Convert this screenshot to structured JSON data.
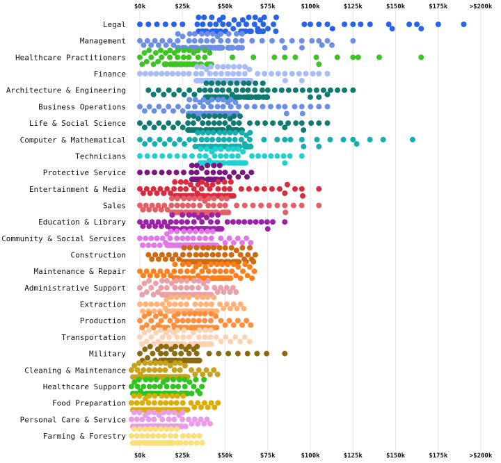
{
  "chart_data": {
    "type": "scatter",
    "subtype": "beeswarm",
    "title": "",
    "xlabel": "",
    "ylabel": "",
    "xlim": [
      0,
      200000
    ],
    "x_ticks": [
      0,
      25000,
      50000,
      75000,
      100000,
      125000,
      150000,
      175000,
      200000
    ],
    "x_tick_labels": [
      "$0k",
      "$25k",
      "$50k",
      "$75k",
      "$100k",
      "$125k",
      "$150k",
      "$175k",
      ">$200k"
    ],
    "x_tick_positions": [
      "top",
      "bottom"
    ],
    "grid": "vertical",
    "legend": "none",
    "categories": [
      {
        "name": "Legal",
        "color": "#2563eb",
        "min": 0,
        "q1": 30000,
        "median": 50000,
        "q3": 80000,
        "max": 190000,
        "count": 50,
        "outliers": [
          100000,
          105000,
          110000,
          120000,
          125000,
          135000,
          148000,
          158000,
          165000,
          175000,
          190000
        ]
      },
      {
        "name": "Management",
        "color": "#6b8fe6",
        "min": 0,
        "q1": 22000,
        "median": 40000,
        "q3": 60000,
        "max": 125000,
        "count": 85,
        "outliers": [
          85000,
          95000,
          105000,
          110000,
          125000
        ]
      },
      {
        "name": "Healthcare Practitioners",
        "color": "#3cc421",
        "min": 0,
        "q1": 12000,
        "median": 25000,
        "q3": 42000,
        "max": 165000,
        "count": 75,
        "outliers": [
          85000,
          105000,
          125000,
          165000
        ]
      },
      {
        "name": "Finance",
        "color": "#a8bdf5",
        "min": 0,
        "q1": 32000,
        "median": 50000,
        "q3": 65000,
        "max": 110000,
        "count": 80,
        "outliers": [
          85000,
          95000,
          105000,
          110000
        ]
      },
      {
        "name": "Architecture & Engineering",
        "color": "#0e7a72",
        "min": 5000,
        "q1": 38000,
        "median": 58000,
        "q3": 75000,
        "max": 125000,
        "count": 95,
        "outliers": [
          100000,
          105000,
          110000,
          120000,
          125000
        ]
      },
      {
        "name": "Business Operations",
        "color": "#6b8fe6",
        "min": 0,
        "q1": 28000,
        "median": 45000,
        "q3": 58000,
        "max": 110000,
        "count": 85,
        "outliers": [
          85000,
          95000,
          105000,
          110000
        ]
      },
      {
        "name": "Life & Social Science",
        "color": "#0e7a72",
        "min": 0,
        "q1": 28000,
        "median": 45000,
        "q3": 60000,
        "max": 110000,
        "count": 85,
        "outliers": [
          85000,
          95000,
          105000,
          110000
        ]
      },
      {
        "name": "Computer & Mathematical",
        "color": "#14b0b0",
        "min": 0,
        "q1": 32000,
        "median": 50000,
        "q3": 65000,
        "max": 160000,
        "count": 90,
        "outliers": [
          85000,
          95000,
          105000,
          125000,
          160000
        ]
      },
      {
        "name": "Technicians",
        "color": "#1fd2d2",
        "min": 0,
        "q1": 35000,
        "median": 48000,
        "q3": 62000,
        "max": 95000,
        "count": 70,
        "outliers": [
          85000,
          95000
        ]
      },
      {
        "name": "Protective Service",
        "color": "#7a1680",
        "min": 0,
        "q1": 30000,
        "median": 40000,
        "q3": 50000,
        "max": 70000,
        "count": 60,
        "outliers": []
      },
      {
        "name": "Entertainment & Media",
        "color": "#d62d3e",
        "min": 0,
        "q1": 20000,
        "median": 38000,
        "q3": 55000,
        "max": 105000,
        "count": 80,
        "outliers": [
          85000,
          95000,
          105000
        ]
      },
      {
        "name": "Sales",
        "color": "#e36068",
        "min": 0,
        "q1": 18000,
        "median": 35000,
        "q3": 52000,
        "max": 105000,
        "count": 80,
        "outliers": [
          85000,
          105000
        ]
      },
      {
        "name": "Education & Library",
        "color": "#9a22a5",
        "min": 0,
        "q1": 18000,
        "median": 35000,
        "q3": 48000,
        "max": 85000,
        "count": 85,
        "outliers": [
          75000,
          85000
        ]
      },
      {
        "name": "Community & Social Services",
        "color": "#e178e6",
        "min": 0,
        "q1": 15000,
        "median": 30000,
        "q3": 45000,
        "max": 70000,
        "count": 75,
        "outliers": []
      },
      {
        "name": "Construction",
        "color": "#d06a0e",
        "min": 5000,
        "q1": 25000,
        "median": 42000,
        "q3": 58000,
        "max": 70000,
        "count": 85,
        "outliers": []
      },
      {
        "name": "Maintenance & Repair",
        "color": "#ff7f1a",
        "min": 0,
        "q1": 20000,
        "median": 38000,
        "q3": 55000,
        "max": 70000,
        "count": 80,
        "outliers": []
      },
      {
        "name": "Administrative Support",
        "color": "#eaa0a8",
        "min": 0,
        "q1": 12000,
        "median": 28000,
        "q3": 42000,
        "max": 60000,
        "count": 75,
        "outliers": []
      },
      {
        "name": "Extraction",
        "color": "#ffb37a",
        "min": 0,
        "q1": 15000,
        "median": 30000,
        "q3": 45000,
        "max": 65000,
        "count": 75,
        "outliers": []
      },
      {
        "name": "Production",
        "color": "#ff8f3f",
        "min": 0,
        "q1": 12000,
        "median": 28000,
        "q3": 45000,
        "max": 70000,
        "count": 75,
        "outliers": []
      },
      {
        "name": "Transportation",
        "color": "#ffd3b2",
        "min": 0,
        "q1": 12000,
        "median": 28000,
        "q3": 42000,
        "max": 70000,
        "count": 75,
        "outliers": []
      },
      {
        "name": "Military",
        "color": "#8b6a10",
        "min": 0,
        "q1": 12000,
        "median": 22000,
        "q3": 35000,
        "max": 85000,
        "count": 65,
        "outliers": [
          85000
        ]
      },
      {
        "name": "Cleaning & Maintenance",
        "color": "#c9a21a",
        "min": -5000,
        "q1": 3000,
        "median": 15000,
        "q3": 28000,
        "max": 50000,
        "count": 75,
        "outliers": []
      },
      {
        "name": "Healthcare Support",
        "color": "#2fc41f",
        "min": -5000,
        "q1": 3000,
        "median": 15000,
        "q3": 28000,
        "max": 40000,
        "count": 75,
        "outliers": []
      },
      {
        "name": "Food Preparation",
        "color": "#dbac0a",
        "min": -5000,
        "q1": 3000,
        "median": 15000,
        "q3": 28000,
        "max": 50000,
        "count": 80,
        "outliers": []
      },
      {
        "name": "Personal Care & Service",
        "color": "#eb9be8",
        "min": -5000,
        "q1": 3000,
        "median": 12000,
        "q3": 25000,
        "max": 45000,
        "count": 80,
        "outliers": []
      },
      {
        "name": "Farming & Forestry",
        "color": "#fbe07a",
        "min": -5000,
        "q1": 3000,
        "median": 10000,
        "q3": 22000,
        "max": 40000,
        "count": 80,
        "outliers": []
      }
    ]
  }
}
